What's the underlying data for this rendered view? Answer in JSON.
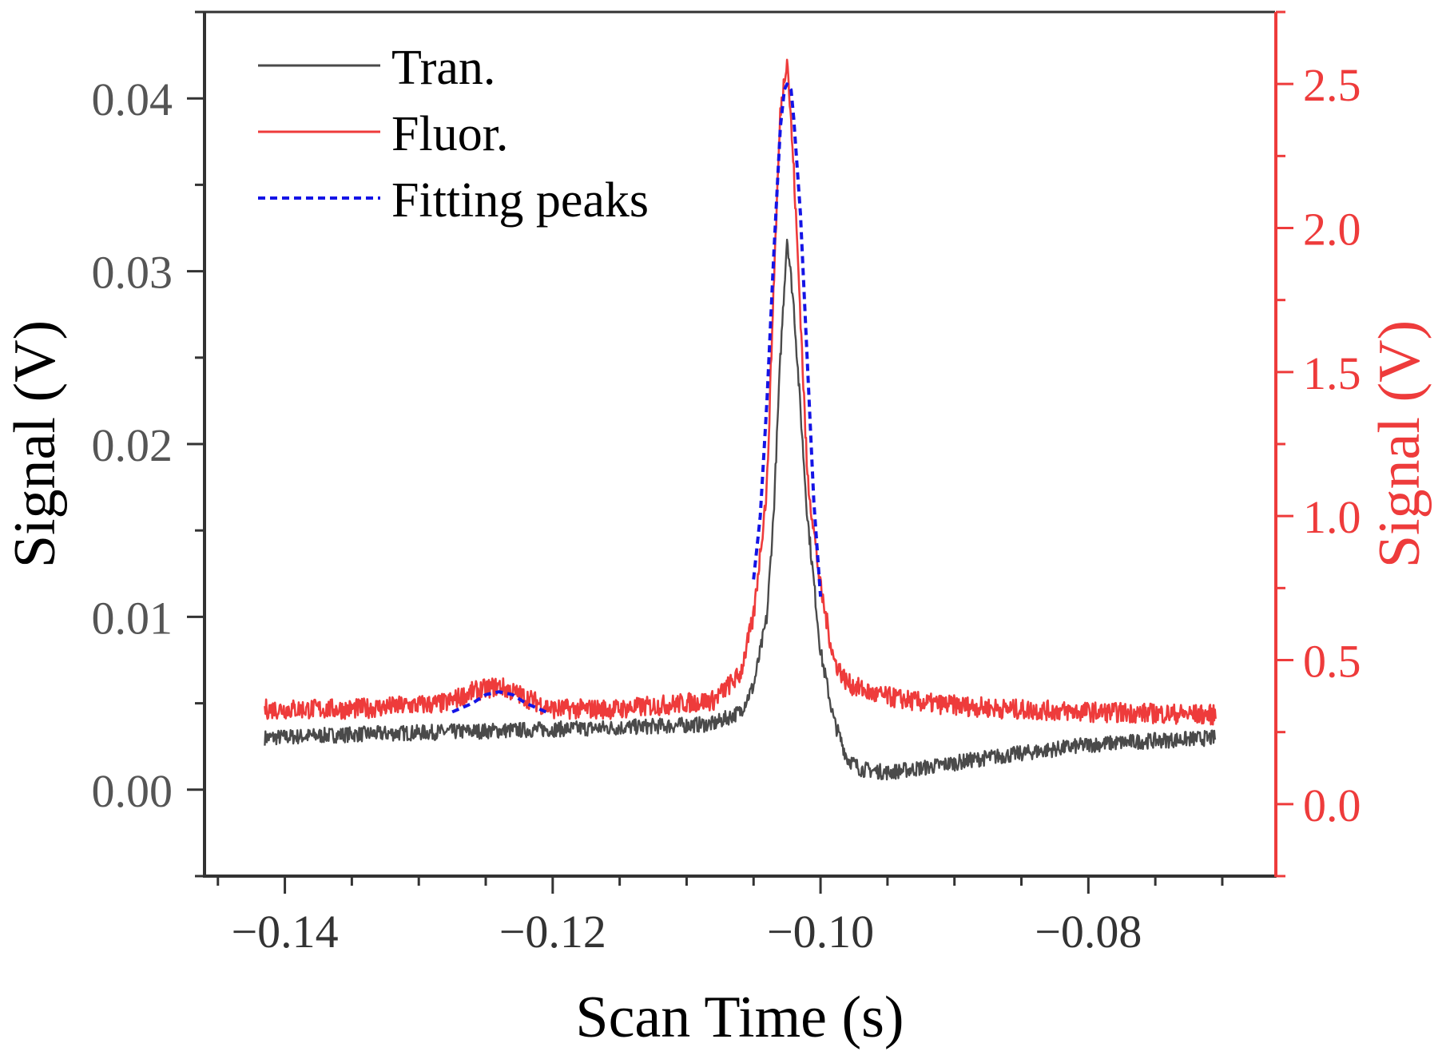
{
  "colors": {
    "tran": "#4a4a4a",
    "fluor": "#ee3b3b",
    "fit": "#1414e6",
    "axis": "#333333",
    "right_axis": "#ee3b3b"
  },
  "chart_data": {
    "type": "line",
    "title": "",
    "xlabel": "Scan Time (s)",
    "ylabel_left": "Signal (V)",
    "ylabel_right": "Signal (V)",
    "xlim": [
      -0.146,
      -0.066
    ],
    "ylim_left": [
      -0.005,
      0.045
    ],
    "ylim_right": [
      -0.25,
      2.75
    ],
    "x_ticks": [
      -0.14,
      -0.12,
      -0.1,
      -0.08
    ],
    "x_tick_labels": [
      "−0.14",
      "−0.12",
      "−0.10",
      "−0.08"
    ],
    "y_left_ticks": [
      0.0,
      0.01,
      0.02,
      0.03,
      0.04
    ],
    "y_left_tick_labels": [
      "0.00",
      "0.01",
      "0.02",
      "0.03",
      "0.04"
    ],
    "y_right_ticks": [
      0.0,
      0.5,
      1.0,
      1.5,
      2.0,
      2.5
    ],
    "y_right_tick_labels": [
      "0.0",
      "0.5",
      "1.0",
      "1.5",
      "2.0",
      "2.5"
    ],
    "legend_position": "top-left",
    "series": [
      {
        "name": "Tran.",
        "axis": "left",
        "style": "solid",
        "x": [
          -0.1415,
          -0.135,
          -0.125,
          -0.115,
          -0.108,
          -0.106,
          -0.105,
          -0.104,
          -0.1035,
          -0.103,
          -0.1025,
          -0.102,
          -0.1015,
          -0.101,
          -0.1,
          -0.099,
          -0.098,
          -0.097,
          -0.095,
          -0.092,
          -0.088,
          -0.084,
          -0.08,
          -0.076,
          -0.0705
        ],
        "y": [
          0.003,
          0.0032,
          0.0034,
          0.0036,
          0.0038,
          0.0045,
          0.006,
          0.01,
          0.016,
          0.025,
          0.032,
          0.028,
          0.022,
          0.016,
          0.008,
          0.004,
          0.0018,
          0.0012,
          0.001,
          0.0013,
          0.0018,
          0.0022,
          0.0026,
          0.0028,
          0.003
        ]
      },
      {
        "name": "Fluor.",
        "axis": "right",
        "style": "solid",
        "x": [
          -0.1415,
          -0.135,
          -0.128,
          -0.126,
          -0.124,
          -0.122,
          -0.12,
          -0.115,
          -0.108,
          -0.106,
          -0.105,
          -0.104,
          -0.1035,
          -0.103,
          -0.1025,
          -0.102,
          -0.1015,
          -0.101,
          -0.1,
          -0.099,
          -0.098,
          -0.096,
          -0.092,
          -0.086,
          -0.08,
          -0.0705
        ],
        "y": [
          0.33,
          0.33,
          0.35,
          0.39,
          0.41,
          0.37,
          0.33,
          0.33,
          0.36,
          0.45,
          0.65,
          1.1,
          1.8,
          2.4,
          2.6,
          2.2,
          1.7,
          1.15,
          0.75,
          0.5,
          0.42,
          0.38,
          0.35,
          0.33,
          0.32,
          0.31
        ]
      },
      {
        "name": "Fitting peaks",
        "axis": "right",
        "style": "dashed",
        "segments": [
          {
            "x": [
              -0.1275,
              -0.126,
              -0.125,
              -0.124,
              -0.123,
              -0.122,
              -0.1205
            ],
            "y": [
              0.32,
              0.35,
              0.38,
              0.39,
              0.38,
              0.35,
              0.32
            ]
          },
          {
            "x": [
              -0.105,
              -0.1045,
              -0.104,
              -0.1035,
              -0.103,
              -0.1027,
              -0.1025,
              -0.1022,
              -0.102,
              -0.1015,
              -0.101,
              -0.1005,
              -0.1
            ],
            "y": [
              0.78,
              1.0,
              1.4,
              1.9,
              2.35,
              2.48,
              2.5,
              2.48,
              2.38,
              2.05,
              1.55,
              1.05,
              0.72
            ]
          }
        ]
      }
    ]
  }
}
